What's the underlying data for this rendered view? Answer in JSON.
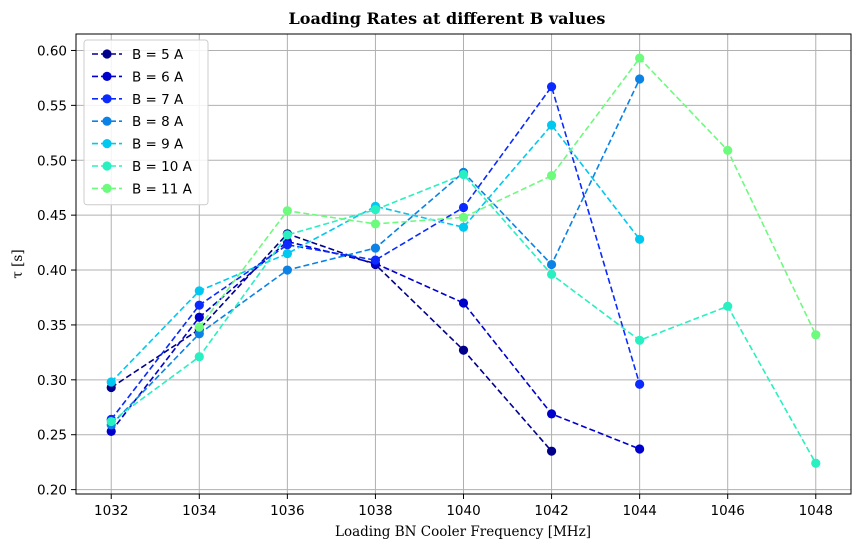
{
  "chart_data": {
    "type": "line",
    "title": "Loading Rates at different B values",
    "xlabel": "Loading BN Cooler Frequency [MHz]",
    "ylabel": "τ [s]",
    "xlim": [
      1031.2,
      1048.8
    ],
    "ylim": [
      0.196,
      0.615
    ],
    "xticks": [
      1032,
      1034,
      1036,
      1038,
      1040,
      1042,
      1044,
      1046,
      1048
    ],
    "xtick_labels": [
      "1032",
      "1034",
      "1036",
      "1038",
      "1040",
      "1042",
      "1044",
      "1046",
      "1048"
    ],
    "yticks": [
      0.2,
      0.25,
      0.3,
      0.35,
      0.4,
      0.45,
      0.5,
      0.55,
      0.6
    ],
    "ytick_labels": [
      "0.20",
      "0.25",
      "0.30",
      "0.35",
      "0.40",
      "0.45",
      "0.50",
      "0.55",
      "0.60"
    ],
    "grid": true,
    "legend_position": "top-left",
    "series": [
      {
        "name": "B = 5 A",
        "color": "#00008b",
        "x": [
          1032,
          1034,
          1036,
          1038,
          1040,
          1042
        ],
        "y": [
          0.293,
          0.346,
          0.433,
          0.405,
          0.327,
          0.235
        ]
      },
      {
        "name": "B = 6 A",
        "color": "#0000cd",
        "x": [
          1032,
          1034,
          1036,
          1038,
          1040,
          1042,
          1044
        ],
        "y": [
          0.253,
          0.357,
          0.426,
          0.406,
          0.37,
          0.269,
          0.237
        ]
      },
      {
        "name": "B = 7 A",
        "color": "#0a2aff",
        "x": [
          1032,
          1034,
          1036,
          1038,
          1040,
          1042,
          1044
        ],
        "y": [
          0.264,
          0.368,
          0.423,
          0.409,
          0.457,
          0.567,
          0.296
        ]
      },
      {
        "name": "B = 8 A",
        "color": "#0a82e6",
        "x": [
          1032,
          1034,
          1036,
          1038,
          1040,
          1042,
          1044
        ],
        "y": [
          0.259,
          0.342,
          0.4,
          0.42,
          0.489,
          0.405,
          0.574
        ]
      },
      {
        "name": "B = 9 A",
        "color": "#00c8f0",
        "x": [
          1032,
          1034,
          1036,
          1038,
          1040,
          1042,
          1044
        ],
        "y": [
          0.298,
          0.381,
          0.415,
          0.458,
          0.439,
          0.532,
          0.428
        ]
      },
      {
        "name": "B = 10 A",
        "color": "#28f0c0",
        "x": [
          1032,
          1034,
          1036,
          1038,
          1040,
          1042,
          1044,
          1046,
          1048
        ],
        "y": [
          0.262,
          0.321,
          0.432,
          0.455,
          0.487,
          0.396,
          0.336,
          0.367,
          0.224
        ]
      },
      {
        "name": "B = 11 A",
        "color": "#6dfb7e",
        "x": [
          1034,
          1036,
          1038,
          1040,
          1042,
          1044,
          1046,
          1048
        ],
        "y": [
          0.348,
          0.454,
          0.442,
          0.448,
          0.486,
          0.593,
          0.509,
          0.341
        ]
      }
    ]
  }
}
